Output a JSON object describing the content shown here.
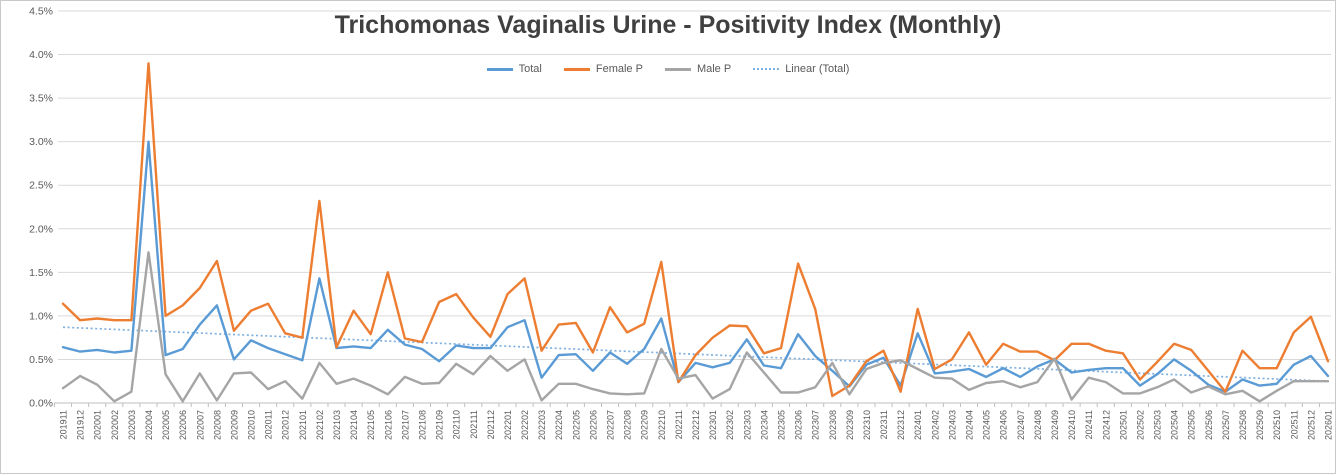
{
  "title": "Trichomonas Vaginalis Urine - Positivity Index (Monthly)",
  "colors": {
    "total": "#5B9BD5",
    "female": "#ED7D31",
    "male": "#A5A5A5",
    "trend": "#7FB0E0",
    "grid": "#D9D9D9",
    "axis": "#BFBFBF",
    "tick_text": "#595959",
    "title_text": "#404040",
    "frame_border": "#C9C9C9"
  },
  "legend": [
    {
      "key": "total",
      "label": "Total",
      "style": "solid"
    },
    {
      "key": "female",
      "label": "Female P",
      "style": "solid"
    },
    {
      "key": "male",
      "label": "Male P",
      "style": "solid"
    },
    {
      "key": "trend",
      "label": "Linear (Total)",
      "style": "dotted"
    }
  ],
  "y_axis": {
    "ticks": [
      "0.0%",
      "0.5%",
      "1.0%",
      "1.5%",
      "2.0%",
      "2.5%",
      "3.0%",
      "3.5%",
      "4.0%",
      "4.5%"
    ],
    "min": 0,
    "max": 4.5,
    "step": 0.5
  },
  "chart_data": {
    "type": "line",
    "title": "Trichomonas Vaginalis Urine - Positivity Index (Monthly)",
    "xlabel": "",
    "ylabel": "",
    "ylim": [
      0,
      4.5
    ],
    "y_tick_step": 0.5,
    "y_unit": "%",
    "grid": true,
    "legend_position": "top",
    "categories": [
      "201911",
      "201912",
      "202001",
      "202002",
      "202003",
      "202004",
      "202005",
      "202006",
      "202007",
      "202008",
      "202009",
      "202010",
      "202011",
      "202012",
      "202101",
      "202102",
      "202103",
      "202104",
      "202105",
      "202106",
      "202107",
      "202108",
      "202109",
      "202110",
      "202111",
      "202112",
      "202201",
      "202202",
      "202203",
      "202204",
      "202205",
      "202206",
      "202207",
      "202208",
      "202209",
      "202210",
      "202211",
      "202212",
      "202301",
      "202302",
      "202303",
      "202304",
      "202305",
      "202306",
      "202307",
      "202308",
      "202309",
      "202310",
      "202311",
      "202312",
      "202401",
      "202402",
      "202403",
      "202404",
      "202405",
      "202406",
      "202407",
      "202408",
      "202409",
      "202410",
      "202411",
      "202412",
      "202501",
      "202502",
      "202503",
      "202504",
      "202505",
      "202506",
      "202507",
      "202508",
      "202509",
      "202510",
      "202511",
      "202512",
      "202601"
    ],
    "series": [
      {
        "name": "Total",
        "color_key": "total",
        "values": [
          0.64,
          0.59,
          0.61,
          0.58,
          0.6,
          3.0,
          0.55,
          0.62,
          0.9,
          1.12,
          0.5,
          0.72,
          0.63,
          0.56,
          0.49,
          1.43,
          0.63,
          0.65,
          0.63,
          0.84,
          0.67,
          0.62,
          0.48,
          0.66,
          0.63,
          0.63,
          0.87,
          0.95,
          0.29,
          0.55,
          0.56,
          0.37,
          0.58,
          0.45,
          0.62,
          0.97,
          0.24,
          0.46,
          0.41,
          0.46,
          0.73,
          0.43,
          0.4,
          0.79,
          0.54,
          0.37,
          0.19,
          0.44,
          0.52,
          0.2,
          0.8,
          0.34,
          0.36,
          0.39,
          0.3,
          0.4,
          0.3,
          0.42,
          0.5,
          0.35,
          0.38,
          0.4,
          0.4,
          0.2,
          0.33,
          0.5,
          0.37,
          0.21,
          0.13,
          0.27,
          0.2,
          0.22,
          0.44,
          0.54,
          0.31
        ]
      },
      {
        "name": "Female P",
        "color_key": "female",
        "values": [
          1.14,
          0.95,
          0.97,
          0.95,
          0.95,
          3.9,
          1.0,
          1.12,
          1.32,
          1.63,
          0.83,
          1.06,
          1.14,
          0.8,
          0.75,
          2.32,
          0.64,
          1.06,
          0.79,
          1.5,
          0.74,
          0.7,
          1.16,
          1.25,
          0.98,
          0.76,
          1.25,
          1.43,
          0.6,
          0.9,
          0.92,
          0.58,
          1.1,
          0.81,
          0.91,
          1.62,
          0.24,
          0.55,
          0.75,
          0.89,
          0.88,
          0.57,
          0.63,
          1.6,
          1.08,
          0.08,
          0.2,
          0.48,
          0.6,
          0.13,
          1.08,
          0.39,
          0.5,
          0.81,
          0.44,
          0.68,
          0.59,
          0.59,
          0.49,
          0.68,
          0.68,
          0.6,
          0.57,
          0.27,
          0.47,
          0.68,
          0.61,
          0.37,
          0.13,
          0.6,
          0.4,
          0.4,
          0.81,
          0.99,
          0.48
        ]
      },
      {
        "name": "Male P",
        "color_key": "male",
        "values": [
          0.17,
          0.31,
          0.21,
          0.02,
          0.13,
          1.73,
          0.33,
          0.02,
          0.34,
          0.03,
          0.34,
          0.35,
          0.16,
          0.25,
          0.05,
          0.46,
          0.22,
          0.28,
          0.2,
          0.1,
          0.3,
          0.22,
          0.23,
          0.45,
          0.33,
          0.54,
          0.37,
          0.5,
          0.03,
          0.22,
          0.22,
          0.16,
          0.11,
          0.1,
          0.11,
          0.62,
          0.28,
          0.32,
          0.05,
          0.16,
          0.58,
          0.35,
          0.12,
          0.12,
          0.18,
          0.46,
          0.1,
          0.39,
          0.46,
          0.49,
          0.39,
          0.29,
          0.28,
          0.15,
          0.23,
          0.25,
          0.18,
          0.24,
          0.51,
          0.04,
          0.29,
          0.24,
          0.11,
          0.11,
          0.18,
          0.27,
          0.12,
          0.19,
          0.1,
          0.14,
          0.02,
          0.14,
          0.25,
          0.25,
          0.25
        ]
      }
    ],
    "trendline": {
      "name": "Linear (Total)",
      "for_series": "Total",
      "color_key": "trend",
      "dashed": true,
      "start": 0.87,
      "end": 0.25
    }
  }
}
